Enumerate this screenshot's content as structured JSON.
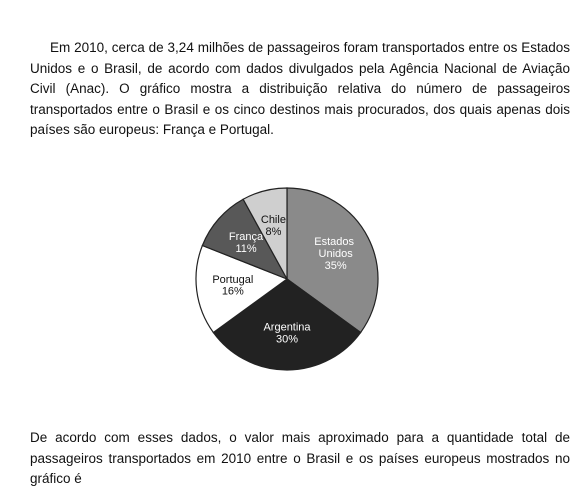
{
  "paragraphs": [
    "Em 2010, cerca de 3,24 milhões de passageiros foram transportados entre os Estados Unidos e o Brasil, de acordo com dados divulgados pela Agência Nacional de Aviação Civil (Anac). O gráfico mostra a distribuição relativa do número de passageiros transportados entre o Brasil e os cinco destinos mais procurados, dos quais apenas dois países são europeus: França e Portugal.",
    "De acordo com esses dados, o valor mais aproximado para a quantidade total de passageiros transportados em 2010 entre o Brasil e os países europeus mostrados no gráfico é"
  ],
  "chart_data": {
    "type": "pie",
    "categories": [
      "Estados Unidos",
      "Argentina",
      "Portugal",
      "França",
      "Chile"
    ],
    "values": [
      35,
      30,
      16,
      11,
      8
    ],
    "value_labels": [
      "35%",
      "30%",
      "16%",
      "11%",
      "8%"
    ],
    "colors": [
      "#8a8a8a",
      "#222222",
      "#ffffff",
      "#585858",
      "#cfcfcf"
    ]
  }
}
